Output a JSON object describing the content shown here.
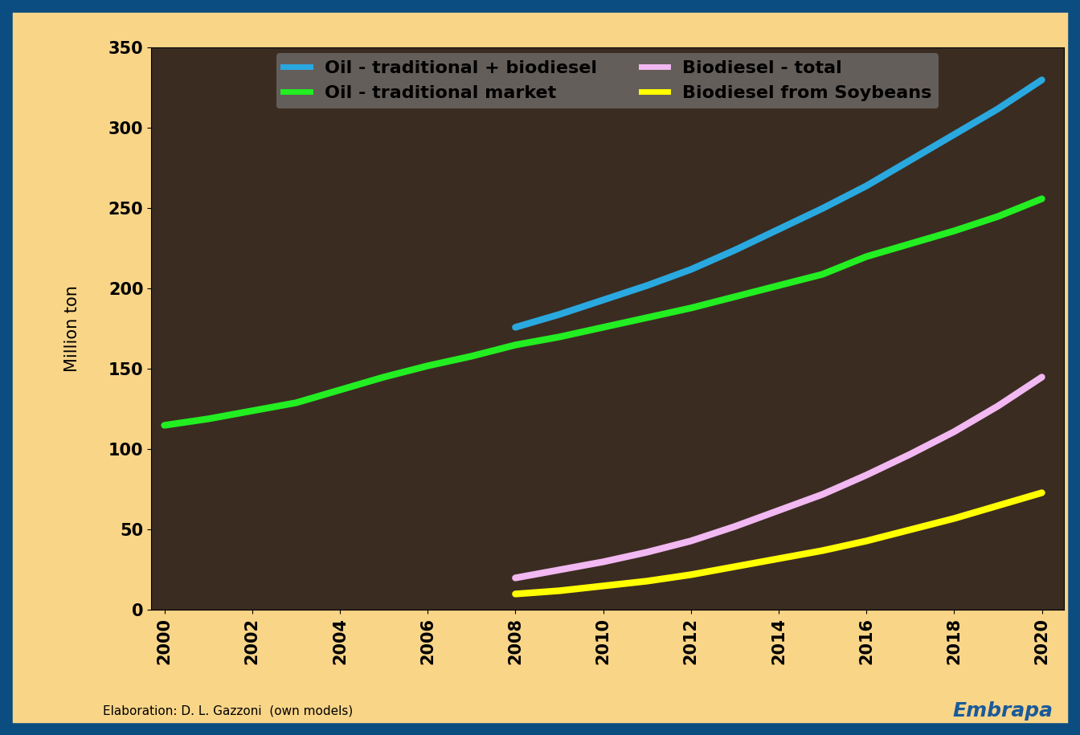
{
  "chart_data": {
    "type": "line",
    "y_label": "Million ton",
    "footer": "Elaboration: D. L. Gazzoni  (own models)",
    "logo": "Embrapa",
    "x": [
      2000,
      2001,
      2002,
      2003,
      2004,
      2005,
      2006,
      2007,
      2008,
      2009,
      2010,
      2011,
      2012,
      2013,
      2014,
      2015,
      2016,
      2017,
      2018,
      2019,
      2020
    ],
    "series": [
      {
        "name": "Oil - traditional + biodiesel",
        "color": "#29a9e0",
        "values": [
          null,
          null,
          null,
          null,
          null,
          null,
          null,
          null,
          176,
          184,
          193,
          202,
          212,
          224,
          237,
          250,
          264,
          280,
          296,
          312,
          330
        ]
      },
      {
        "name": "Oil - traditional market",
        "color": "#22ee22",
        "values": [
          115,
          119,
          124,
          129,
          137,
          145,
          152,
          158,
          165,
          170,
          176,
          182,
          188,
          195,
          202,
          209,
          220,
          228,
          236,
          245,
          256
        ]
      },
      {
        "name": "Biodiesel - total",
        "color": "#f2b8f2",
        "values": [
          null,
          null,
          null,
          null,
          null,
          null,
          null,
          null,
          20,
          25,
          30,
          36,
          43,
          52,
          62,
          72,
          84,
          97,
          111,
          127,
          145
        ]
      },
      {
        "name": "Biodiesel from Soybeans",
        "color": "#ffff00",
        "values": [
          null,
          null,
          null,
          null,
          null,
          null,
          null,
          null,
          10,
          12,
          15,
          18,
          22,
          27,
          32,
          37,
          43,
          50,
          57,
          65,
          73
        ]
      }
    ],
    "xlim": [
      1999.7,
      2020.5
    ],
    "xticks": [
      2000,
      2002,
      2004,
      2006,
      2008,
      2010,
      2012,
      2014,
      2016,
      2018,
      2020
    ],
    "ylim": [
      0,
      350
    ],
    "yticks": [
      0,
      50,
      100,
      150,
      200,
      250,
      300,
      350
    ],
    "legend": "upper center",
    "grid": false
  }
}
